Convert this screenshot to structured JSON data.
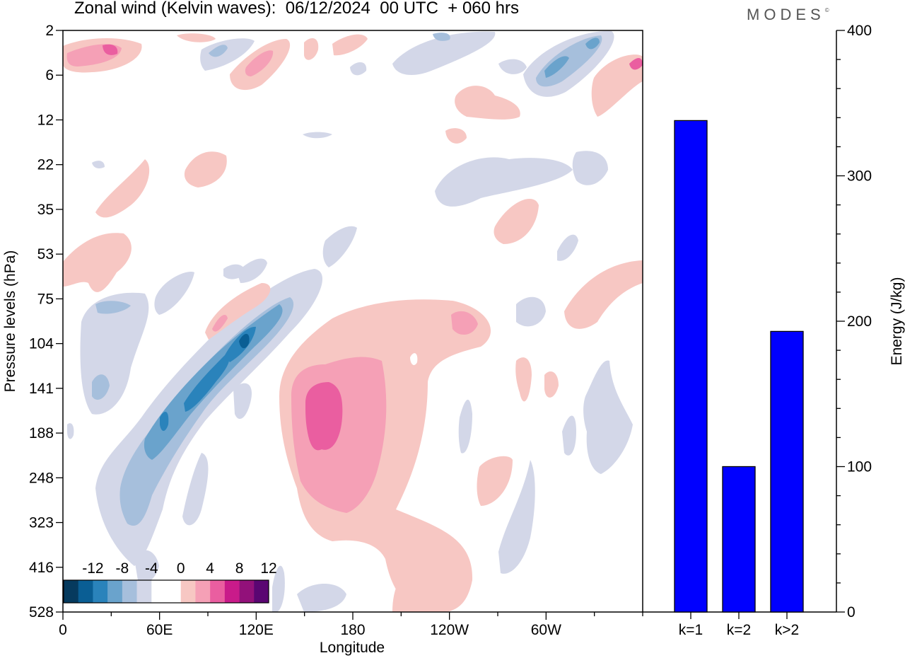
{
  "header": {
    "title": "Zonal wind (Kelvin waves):  06/12/2024  00 UTC  + 060 hrs",
    "brand": "MODES",
    "brand_mark": "©"
  },
  "chart_data": [
    {
      "type": "heatmap",
      "title": "Zonal wind (Kelvin waves):  06/12/2024  00 UTC  + 060 hrs",
      "xlabel": "Longitude",
      "ylabel": "Pressure levels (hPa)",
      "x_ticks": [
        "0",
        "60E",
        "120E",
        "180",
        "120W",
        "60W"
      ],
      "x_tick_values": [
        0,
        60,
        120,
        180,
        240,
        300
      ],
      "xlim": [
        0,
        360
      ],
      "y_ticks": [
        "2",
        "6",
        "12",
        "22",
        "35",
        "53",
        "75",
        "104",
        "141",
        "188",
        "248",
        "323",
        "416",
        "528"
      ],
      "colorbar": {
        "labels": [
          "-12",
          "-8",
          "-4",
          "0",
          "4",
          "8",
          "12"
        ],
        "colors": [
          "#063a5e",
          "#0a5e94",
          "#2a83bb",
          "#6aa3cc",
          "#a6bfdc",
          "#d3d7e8",
          "#ffffff",
          "#ffffff",
          "#f7c7c3",
          "#f5a0b6",
          "#ea5ea0",
          "#c91b8a",
          "#92117a",
          "#5a0672"
        ]
      }
    },
    {
      "type": "bar",
      "categories": [
        "k=1",
        "k=2",
        "k>2"
      ],
      "values": [
        338,
        100,
        193
      ],
      "ylabel": "Energy (J/kg)",
      "ylim": [
        0,
        400
      ],
      "y_ticks": [
        "0",
        "100",
        "200",
        "300",
        "400"
      ],
      "bar_color": "#0000ff"
    }
  ]
}
